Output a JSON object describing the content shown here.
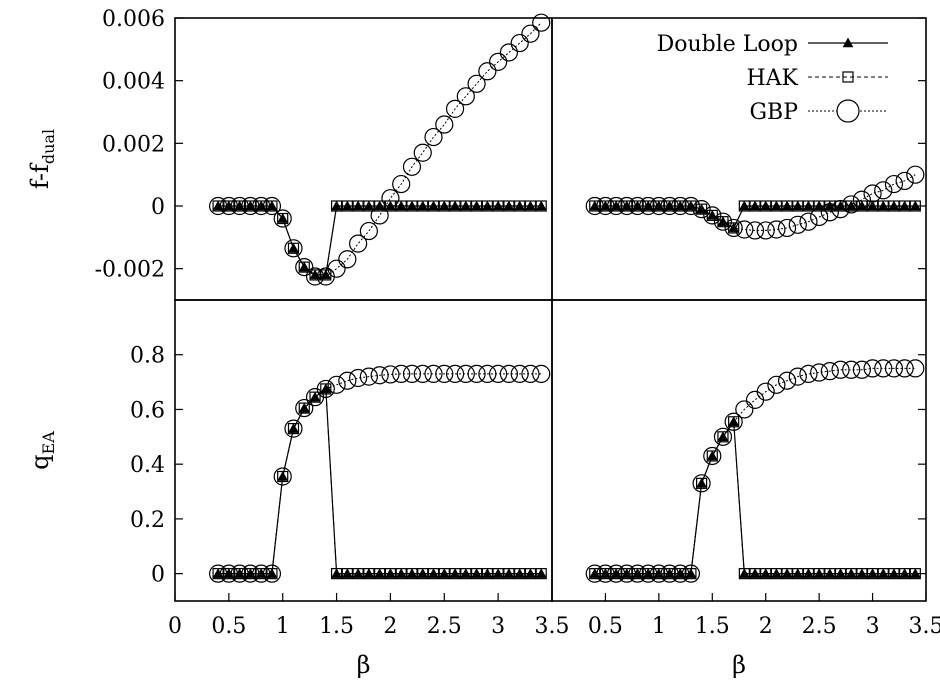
{
  "chart_data": [
    {
      "type": "line",
      "panel": "top-left",
      "ylabel": "f-f",
      "ylabel_sub": "dual",
      "xlabel": "",
      "xlim": [
        0,
        3.5
      ],
      "ylim": [
        -0.003,
        0.006
      ],
      "xticks": [],
      "yticks": [
        -0.002,
        0,
        0.002,
        0.004,
        0.006
      ],
      "ytick_labels": [
        "-0.002",
        "0",
        "0.002",
        "0.004",
        "0.006"
      ],
      "series": [
        {
          "name": "Double Loop",
          "style": "dl",
          "x": [
            0.4,
            0.5,
            0.6,
            0.7,
            0.8,
            0.9,
            1.0,
            1.1,
            1.2,
            1.3,
            1.4,
            1.5,
            1.6,
            1.7,
            1.8,
            1.9,
            2.0,
            2.1,
            2.2,
            2.3,
            2.4,
            2.5,
            2.6,
            2.7,
            2.8,
            2.9,
            3.0,
            3.1,
            3.2,
            3.3,
            3.4
          ],
          "y": [
            0,
            0,
            0,
            0,
            0,
            0,
            -0.0004,
            -0.00135,
            -0.00195,
            -0.0022,
            -0.0022,
            0,
            0,
            0,
            0,
            0,
            0,
            0,
            0,
            0,
            0,
            0,
            0,
            0,
            0,
            0,
            0,
            0,
            0,
            0,
            0
          ]
        },
        {
          "name": "HAK",
          "style": "hak",
          "x": [
            0.4,
            0.5,
            0.6,
            0.7,
            0.8,
            0.9,
            1.0,
            1.1,
            1.2,
            1.3,
            1.4,
            1.5,
            1.6,
            1.7,
            1.8,
            1.9,
            2.0,
            2.1,
            2.2,
            2.3,
            2.4,
            2.5,
            2.6,
            2.7,
            2.8,
            2.9,
            3.0,
            3.1,
            3.2,
            3.3,
            3.4
          ],
          "y": [
            0,
            0,
            0,
            0,
            0,
            0,
            -0.0004,
            -0.00135,
            -0.00195,
            -0.0022,
            -0.0022,
            0,
            0,
            0,
            0,
            0,
            0,
            0,
            0,
            0,
            0,
            0,
            0,
            0,
            0,
            0,
            0,
            0,
            0,
            0,
            0
          ]
        },
        {
          "name": "GBP",
          "style": "gbp",
          "x": [
            0.4,
            0.5,
            0.6,
            0.7,
            0.8,
            0.9,
            1.0,
            1.1,
            1.2,
            1.3,
            1.4,
            1.5,
            1.6,
            1.7,
            1.8,
            1.9,
            2.0,
            2.1,
            2.2,
            2.3,
            2.4,
            2.5,
            2.6,
            2.7,
            2.8,
            2.9,
            3.0,
            3.1,
            3.2,
            3.3,
            3.4
          ],
          "y": [
            0,
            0,
            0,
            0,
            0,
            0,
            -0.0004,
            -0.00135,
            -0.00195,
            -0.00225,
            -0.00225,
            -0.002,
            -0.0017,
            -0.0012,
            -0.0008,
            -0.0003,
            0.00025,
            0.0007,
            0.00125,
            0.0017,
            0.0022,
            0.0026,
            0.0031,
            0.0035,
            0.0039,
            0.0043,
            0.0046,
            0.0049,
            0.0052,
            0.0055,
            0.00585
          ]
        }
      ]
    },
    {
      "type": "line",
      "panel": "top-right",
      "xlabel": "",
      "xlim": [
        0,
        3.5
      ],
      "ylim": [
        -0.003,
        0.006
      ],
      "xticks": [],
      "series": [
        {
          "name": "Double Loop",
          "style": "dl",
          "x": [
            0.4,
            0.5,
            0.6,
            0.7,
            0.8,
            0.9,
            1.0,
            1.1,
            1.2,
            1.3,
            1.4,
            1.5,
            1.6,
            1.7,
            1.8,
            1.9,
            2.0,
            2.1,
            2.2,
            2.3,
            2.4,
            2.5,
            2.6,
            2.7,
            2.8,
            2.9,
            3.0,
            3.1,
            3.2,
            3.3,
            3.4
          ],
          "y": [
            0,
            0,
            0,
            0,
            0,
            0,
            0,
            0,
            0,
            0,
            -0.0001,
            -0.0003,
            -0.0005,
            -0.0007,
            0,
            0,
            0,
            0,
            0,
            0,
            0,
            0,
            0,
            0,
            0,
            0,
            0,
            0,
            0,
            0,
            0
          ]
        },
        {
          "name": "HAK",
          "style": "hak",
          "x": [
            0.4,
            0.5,
            0.6,
            0.7,
            0.8,
            0.9,
            1.0,
            1.1,
            1.2,
            1.3,
            1.4,
            1.5,
            1.6,
            1.7,
            1.8,
            1.9,
            2.0,
            2.1,
            2.2,
            2.3,
            2.4,
            2.5,
            2.6,
            2.7,
            2.8,
            2.9,
            3.0,
            3.1,
            3.2,
            3.3,
            3.4
          ],
          "y": [
            0,
            0,
            0,
            0,
            0,
            0,
            0,
            0,
            0,
            0,
            -0.0001,
            -0.0003,
            -0.0005,
            -0.0007,
            0,
            0,
            0,
            0,
            0,
            0,
            0,
            0,
            0,
            0,
            0,
            0,
            0,
            0,
            0,
            0,
            0
          ]
        },
        {
          "name": "GBP",
          "style": "gbp",
          "x": [
            0.4,
            0.5,
            0.6,
            0.7,
            0.8,
            0.9,
            1.0,
            1.1,
            1.2,
            1.3,
            1.4,
            1.5,
            1.6,
            1.7,
            1.8,
            1.9,
            2.0,
            2.1,
            2.2,
            2.3,
            2.4,
            2.5,
            2.6,
            2.7,
            2.8,
            2.9,
            3.0,
            3.1,
            3.2,
            3.3,
            3.4
          ],
          "y": [
            0,
            0,
            0,
            0,
            0,
            0,
            0,
            0,
            0,
            0,
            -0.0001,
            -0.0003,
            -0.0005,
            -0.0007,
            -0.00075,
            -0.00078,
            -0.00078,
            -0.00075,
            -0.0007,
            -0.0006,
            -0.0005,
            -0.00035,
            -0.0002,
            -0.0001,
            5e-05,
            0.0002,
            0.0004,
            0.0005,
            0.0007,
            0.0008,
            0.001
          ]
        }
      ]
    },
    {
      "type": "line",
      "panel": "bottom-left",
      "ylabel": "q",
      "ylabel_sub": "EA",
      "xlabel": "β",
      "xlim": [
        0,
        3.5
      ],
      "ylim": [
        -0.1,
        1.0
      ],
      "xticks": [
        0,
        0.5,
        1,
        1.5,
        2,
        2.5,
        3,
        3.5
      ],
      "xtick_labels": [
        "0",
        "0.5",
        "1",
        "1.5",
        "2",
        "2.5",
        "3",
        "3.5"
      ],
      "yticks": [
        0,
        0.2,
        0.4,
        0.6,
        0.8
      ],
      "ytick_labels": [
        "0",
        "0.2",
        "0.4",
        "0.6",
        "0.8"
      ],
      "series": [
        {
          "name": "Double Loop",
          "style": "dl",
          "x": [
            0.4,
            0.5,
            0.6,
            0.7,
            0.8,
            0.9,
            1.0,
            1.1,
            1.2,
            1.3,
            1.4,
            1.5,
            1.6,
            1.7,
            1.8,
            1.9,
            2.0,
            2.1,
            2.2,
            2.3,
            2.4,
            2.5,
            2.6,
            2.7,
            2.8,
            2.9,
            3.0,
            3.1,
            3.2,
            3.3,
            3.4
          ],
          "y": [
            0,
            0,
            0,
            0,
            0,
            0,
            0.355,
            0.53,
            0.605,
            0.645,
            0.675,
            0,
            0,
            0,
            0,
            0,
            0,
            0,
            0,
            0,
            0,
            0,
            0,
            0,
            0,
            0,
            0,
            0,
            0,
            0,
            0
          ]
        },
        {
          "name": "HAK",
          "style": "hak",
          "x": [
            0.4,
            0.5,
            0.6,
            0.7,
            0.8,
            0.9,
            1.0,
            1.1,
            1.2,
            1.3,
            1.4,
            1.5,
            1.6,
            1.7,
            1.8,
            1.9,
            2.0,
            2.1,
            2.2,
            2.3,
            2.4,
            2.5,
            2.6,
            2.7,
            2.8,
            2.9,
            3.0,
            3.1,
            3.2,
            3.3,
            3.4
          ],
          "y": [
            0,
            0,
            0,
            0,
            0,
            0,
            0.355,
            0.53,
            0.605,
            0.645,
            0.675,
            0,
            0,
            0,
            0,
            0,
            0,
            0,
            0,
            0,
            0,
            0,
            0,
            0,
            0,
            0,
            0,
            0,
            0,
            0,
            0
          ]
        },
        {
          "name": "GBP",
          "style": "gbp",
          "x": [
            0.4,
            0.5,
            0.6,
            0.7,
            0.8,
            0.9,
            1.0,
            1.1,
            1.2,
            1.3,
            1.4,
            1.5,
            1.6,
            1.7,
            1.8,
            1.9,
            2.0,
            2.1,
            2.2,
            2.3,
            2.4,
            2.5,
            2.6,
            2.7,
            2.8,
            2.9,
            3.0,
            3.1,
            3.2,
            3.3,
            3.4
          ],
          "y": [
            0,
            0,
            0,
            0,
            0,
            0,
            0.355,
            0.53,
            0.605,
            0.645,
            0.675,
            0.69,
            0.705,
            0.715,
            0.72,
            0.725,
            0.728,
            0.73,
            0.73,
            0.73,
            0.73,
            0.73,
            0.73,
            0.73,
            0.73,
            0.73,
            0.73,
            0.73,
            0.73,
            0.73,
            0.73
          ]
        }
      ]
    },
    {
      "type": "line",
      "panel": "bottom-right",
      "xlabel": "β",
      "xlim": [
        0,
        3.5
      ],
      "ylim": [
        -0.1,
        1.0
      ],
      "xticks": [
        0.5,
        1,
        1.5,
        2,
        2.5,
        3,
        3.5
      ],
      "xtick_labels": [
        "0.5",
        "1",
        "1.5",
        "2",
        "2.5",
        "3",
        "3.5"
      ],
      "series": [
        {
          "name": "Double Loop",
          "style": "dl",
          "x": [
            0.4,
            0.5,
            0.6,
            0.7,
            0.8,
            0.9,
            1.0,
            1.1,
            1.2,
            1.3,
            1.4,
            1.5,
            1.6,
            1.7,
            1.8,
            1.9,
            2.0,
            2.1,
            2.2,
            2.3,
            2.4,
            2.5,
            2.6,
            2.7,
            2.8,
            2.9,
            3.0,
            3.1,
            3.2,
            3.3,
            3.4
          ],
          "y": [
            0,
            0,
            0,
            0,
            0,
            0,
            0,
            0,
            0,
            0,
            0.33,
            0.43,
            0.5,
            0.555,
            0,
            0,
            0,
            0,
            0,
            0,
            0,
            0,
            0,
            0,
            0,
            0,
            0,
            0,
            0,
            0,
            0
          ]
        },
        {
          "name": "HAK",
          "style": "hak",
          "x": [
            0.4,
            0.5,
            0.6,
            0.7,
            0.8,
            0.9,
            1.0,
            1.1,
            1.2,
            1.3,
            1.4,
            1.5,
            1.6,
            1.7,
            1.8,
            1.9,
            2.0,
            2.1,
            2.2,
            2.3,
            2.4,
            2.5,
            2.6,
            2.7,
            2.8,
            2.9,
            3.0,
            3.1,
            3.2,
            3.3,
            3.4
          ],
          "y": [
            0,
            0,
            0,
            0,
            0,
            0,
            0,
            0,
            0,
            0,
            0.33,
            0.43,
            0.5,
            0.555,
            0,
            0,
            0,
            0,
            0,
            0,
            0,
            0,
            0,
            0,
            0,
            0,
            0,
            0,
            0,
            0,
            0
          ]
        },
        {
          "name": "GBP",
          "style": "gbp",
          "x": [
            0.4,
            0.5,
            0.6,
            0.7,
            0.8,
            0.9,
            1.0,
            1.1,
            1.2,
            1.3,
            1.4,
            1.5,
            1.6,
            1.7,
            1.8,
            1.9,
            2.0,
            2.1,
            2.2,
            2.3,
            2.4,
            2.5,
            2.6,
            2.7,
            2.8,
            2.9,
            3.0,
            3.1,
            3.2,
            3.3,
            3.4
          ],
          "y": [
            0,
            0,
            0,
            0,
            0,
            0,
            0,
            0,
            0,
            0,
            0.33,
            0.43,
            0.5,
            0.555,
            0.6,
            0.635,
            0.665,
            0.69,
            0.705,
            0.72,
            0.73,
            0.735,
            0.74,
            0.745,
            0.745,
            0.745,
            0.75,
            0.75,
            0.75,
            0.75,
            0.75
          ]
        }
      ]
    }
  ],
  "legend": {
    "placement": "top-right",
    "items": [
      {
        "label": "Double Loop",
        "style": "dl"
      },
      {
        "label": "HAK",
        "style": "hak"
      },
      {
        "label": "GBP",
        "style": "gbp"
      }
    ]
  },
  "colors": {
    "ink": "#000000",
    "background": "#ffffff"
  }
}
